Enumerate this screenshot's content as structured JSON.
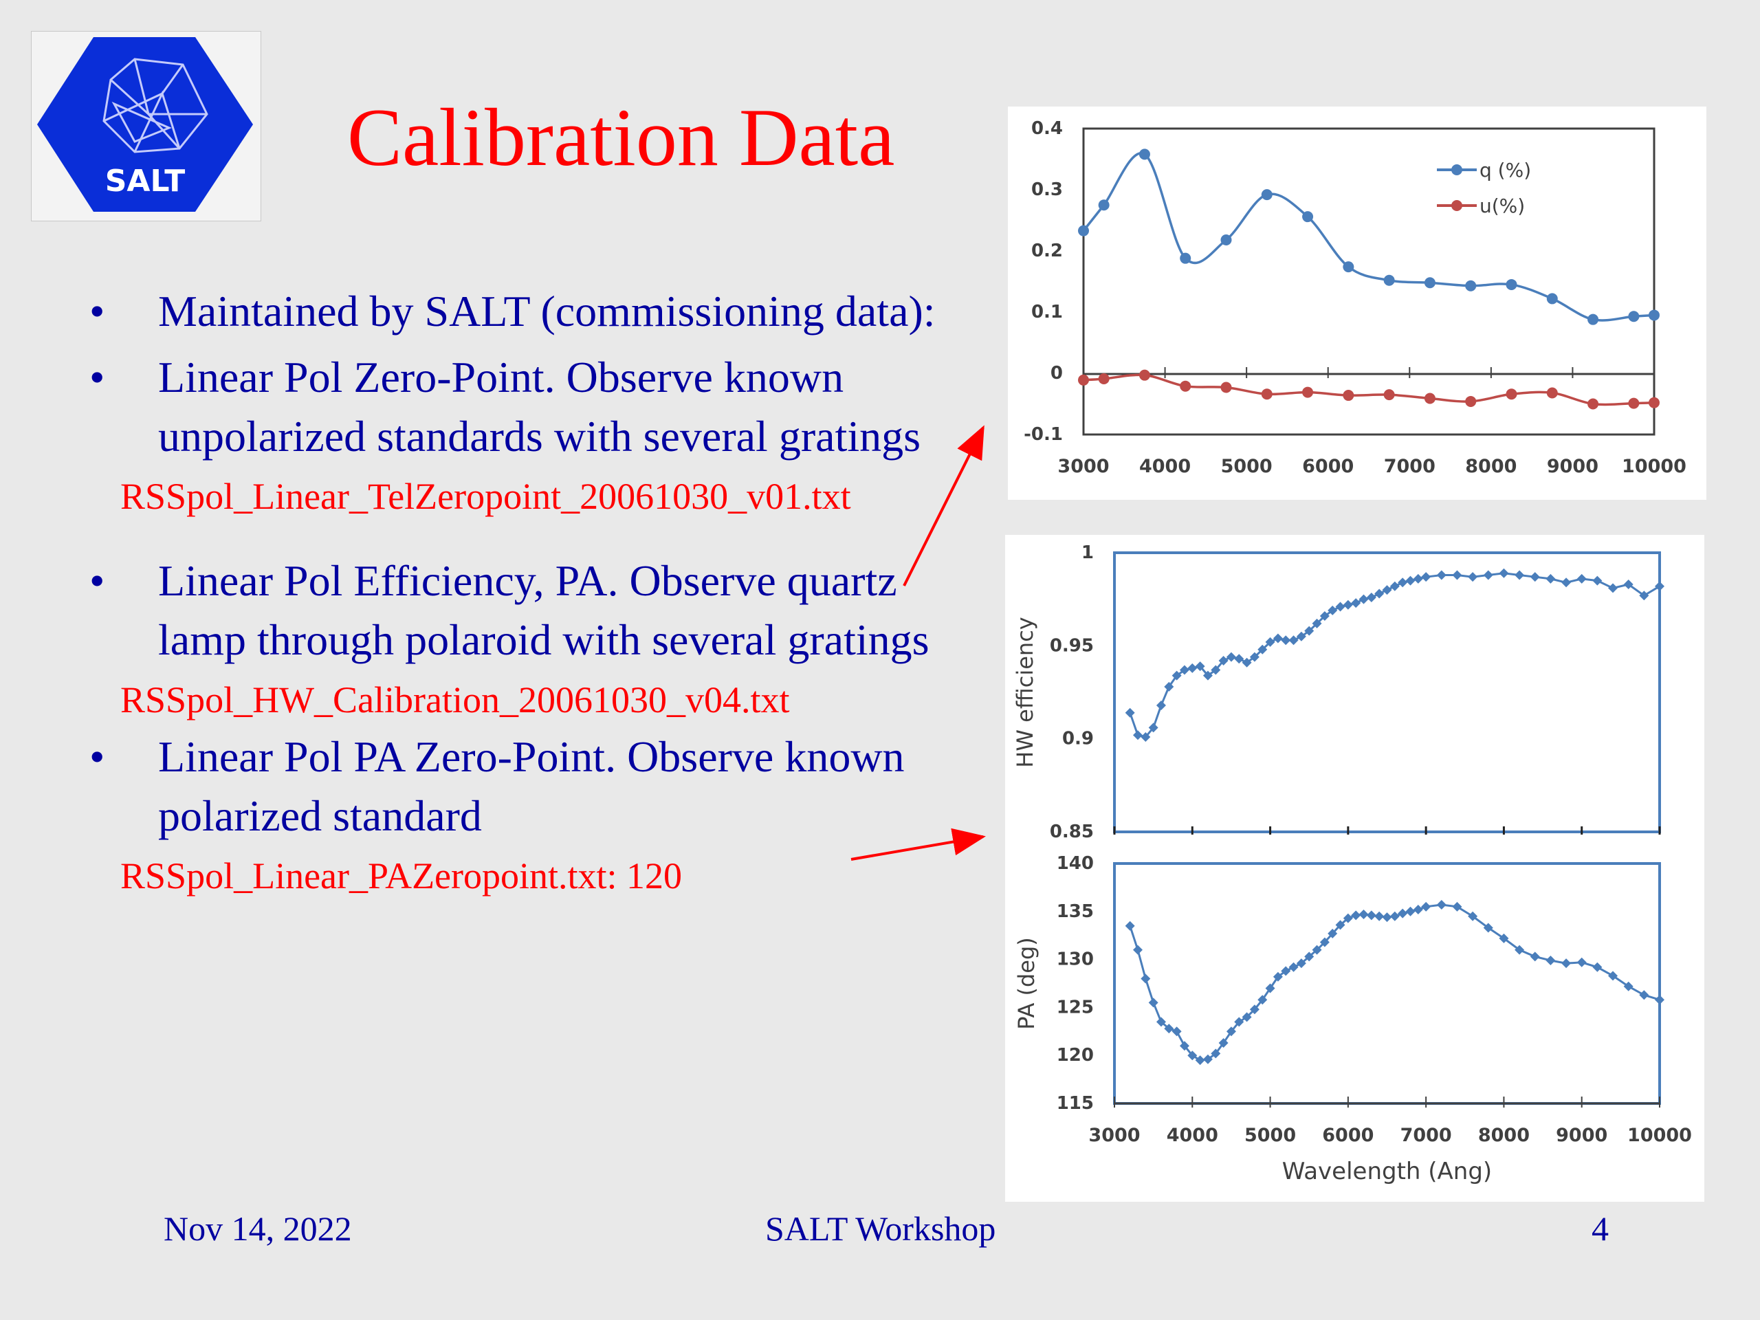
{
  "slide": {
    "title": "Calibration Data",
    "logo_text": "SALT",
    "bullets": [
      {
        "text": "Maintained by SALT (commissioning data):",
        "ref": ""
      },
      {
        "text": "Linear Pol Zero-Point.  Observe known unpolarized standards with several gratings",
        "ref": "RSSpol_Linear_TelZeropoint_20061030_v01.txt"
      },
      {
        "text": "Linear Pol Efficiency, PA.  Observe quartz lamp through polaroid with several gratings",
        "ref": "RSSpol_HW_Calibration_20061030_v04.txt"
      },
      {
        "text": "Linear Pol PA Zero-Point.  Observe known polarized standard",
        "ref": "RSSpol_Linear_PAZeropoint.txt: 120"
      }
    ],
    "footer": {
      "date": "Nov 14, 2022",
      "center": "SALT Workshop",
      "page": "4"
    },
    "colors": {
      "title": "#ff0000",
      "body": "#0000a0",
      "ref": "#ff0000",
      "arrow": "#ff0000"
    }
  },
  "chart_data": [
    {
      "type": "line",
      "xlabel": "",
      "ylabel": "",
      "xlim": [
        3000,
        10000
      ],
      "ylim": [
        -0.1,
        0.4
      ],
      "xticks": [
        "3000",
        "4000",
        "5000",
        "6000",
        "7000",
        "8000",
        "9000",
        "10000"
      ],
      "yticks": [
        "0.4",
        "0.3",
        "0.2",
        "0.1",
        "0",
        "-0.1"
      ],
      "legend": "top-right",
      "series": [
        {
          "name": "q (%)",
          "color": "#4a7ebb",
          "x": [
            3000,
            3250,
            3750,
            4250,
            4750,
            5250,
            5750,
            6250,
            6750,
            7250,
            7750,
            8250,
            8750,
            9250,
            9750,
            10000
          ],
          "y": [
            0.233,
            0.275,
            0.358,
            0.188,
            0.218,
            0.292,
            0.256,
            0.174,
            0.152,
            0.148,
            0.143,
            0.145,
            0.122,
            0.088,
            0.093,
            0.095
          ]
        },
        {
          "name": "u(%)",
          "color": "#be4b48",
          "x": [
            3000,
            3250,
            3750,
            4250,
            4750,
            5250,
            5750,
            6250,
            6750,
            7250,
            7750,
            8250,
            8750,
            9250,
            9750,
            10000
          ],
          "y": [
            -0.011,
            -0.009,
            -0.003,
            -0.021,
            -0.023,
            -0.034,
            -0.031,
            -0.036,
            -0.035,
            -0.041,
            -0.046,
            -0.034,
            -0.032,
            -0.05,
            -0.049,
            -0.048
          ]
        }
      ]
    },
    {
      "type": "line",
      "xlabel": "",
      "ylabel": "HW efficiency",
      "xlim": [
        3000,
        10000
      ],
      "ylim": [
        0.85,
        1.0
      ],
      "yticks": [
        "1",
        "0.95",
        "0.9",
        "0.85"
      ],
      "series": [
        {
          "color": "#4a7ebb",
          "x": [
            3200,
            3300,
            3400,
            3500,
            3600,
            3700,
            3800,
            3900,
            4000,
            4100,
            4200,
            4300,
            4400,
            4500,
            4600,
            4700,
            4800,
            4900,
            5000,
            5100,
            5200,
            5300,
            5400,
            5500,
            5600,
            5700,
            5800,
            5900,
            6000,
            6100,
            6200,
            6300,
            6400,
            6500,
            6600,
            6700,
            6800,
            6900,
            7000,
            7200,
            7400,
            7600,
            7800,
            8000,
            8200,
            8400,
            8600,
            8800,
            9000,
            9200,
            9400,
            9600,
            9800,
            10000
          ],
          "y": [
            0.914,
            0.902,
            0.901,
            0.906,
            0.918,
            0.928,
            0.934,
            0.937,
            0.938,
            0.939,
            0.934,
            0.937,
            0.942,
            0.944,
            0.943,
            0.941,
            0.944,
            0.948,
            0.952,
            0.954,
            0.953,
            0.953,
            0.955,
            0.958,
            0.962,
            0.966,
            0.969,
            0.971,
            0.972,
            0.973,
            0.975,
            0.976,
            0.978,
            0.98,
            0.982,
            0.984,
            0.985,
            0.986,
            0.987,
            0.988,
            0.988,
            0.987,
            0.988,
            0.989,
            0.988,
            0.987,
            0.986,
            0.984,
            0.986,
            0.985,
            0.981,
            0.983,
            0.977,
            0.982
          ]
        }
      ]
    },
    {
      "type": "line",
      "xlabel": "Wavelength (Ang)",
      "ylabel": "PA (deg)",
      "xlim": [
        3000,
        10000
      ],
      "ylim": [
        115,
        140
      ],
      "xticks": [
        "3000",
        "4000",
        "5000",
        "6000",
        "7000",
        "8000",
        "9000",
        "10000"
      ],
      "yticks": [
        "140",
        "135",
        "130",
        "125",
        "120",
        "115"
      ],
      "series": [
        {
          "color": "#4a7ebb",
          "x": [
            3200,
            3300,
            3400,
            3500,
            3600,
            3700,
            3800,
            3900,
            4000,
            4100,
            4200,
            4300,
            4400,
            4500,
            4600,
            4700,
            4800,
            4900,
            5000,
            5100,
            5200,
            5300,
            5400,
            5500,
            5600,
            5700,
            5800,
            5900,
            6000,
            6100,
            6200,
            6300,
            6400,
            6500,
            6600,
            6700,
            6800,
            6900,
            7000,
            7200,
            7400,
            7600,
            7800,
            8000,
            8200,
            8400,
            8600,
            8800,
            9000,
            9200,
            9400,
            9600,
            9800,
            10000
          ],
          "y": [
            133.5,
            131.0,
            128.0,
            125.5,
            123.5,
            122.8,
            122.5,
            121.0,
            120.0,
            119.5,
            119.6,
            120.2,
            121.3,
            122.5,
            123.5,
            124.0,
            124.8,
            125.8,
            127.0,
            128.2,
            128.8,
            129.2,
            129.6,
            130.3,
            131.0,
            131.8,
            132.7,
            133.6,
            134.3,
            134.6,
            134.7,
            134.6,
            134.5,
            134.4,
            134.5,
            134.8,
            135.0,
            135.2,
            135.5,
            135.7,
            135.5,
            134.5,
            133.3,
            132.2,
            131.0,
            130.3,
            129.9,
            129.6,
            129.7,
            129.2,
            128.3,
            127.2,
            126.3,
            125.8
          ]
        }
      ]
    }
  ]
}
